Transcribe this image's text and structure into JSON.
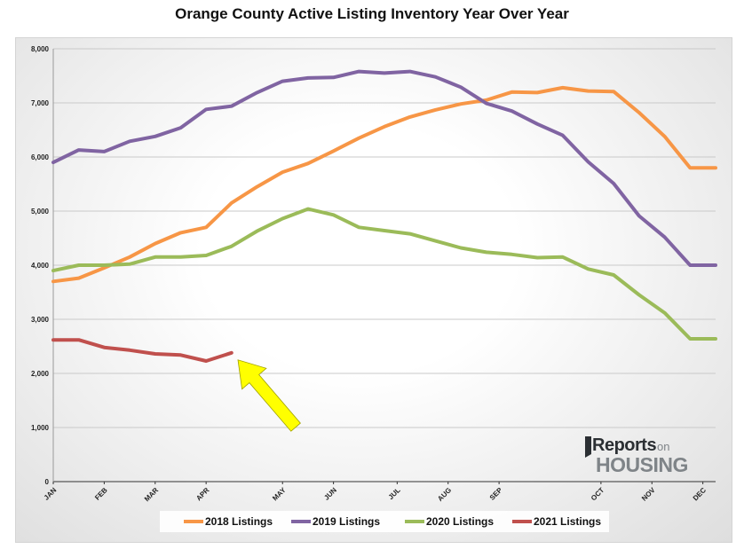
{
  "chart_data": {
    "type": "line",
    "title": "Orange County Active Listing Inventory Year Over Year",
    "xlabel": "",
    "ylabel": "",
    "ylim": [
      0,
      8000
    ],
    "yticks": [
      0,
      1000,
      2000,
      3000,
      4000,
      5000,
      6000,
      7000,
      8000
    ],
    "ytick_labels": [
      "0",
      "1,000",
      "2,000",
      "3,000",
      "4,000",
      "5,000",
      "6,000",
      "7,000",
      "8,000"
    ],
    "x_tick_labels": [
      "JAN",
      "FEB",
      "MAR",
      "APR",
      "MAY",
      "JUN",
      "JUL",
      "AUG",
      "SEP",
      "OCT",
      "NOV",
      "DEC"
    ],
    "x_tick_positions": [
      0,
      4,
      8,
      12,
      18,
      22,
      27,
      31,
      35,
      43,
      47,
      51
    ],
    "grid": true,
    "legend_position": "bottom",
    "series": [
      {
        "name": "2018 Listings",
        "color": "#f79646",
        "x": [
          0,
          2,
          4,
          6,
          8,
          10,
          12,
          14,
          16,
          18,
          20,
          22,
          24,
          26,
          28,
          30,
          32,
          34,
          36,
          38,
          40,
          42,
          44,
          46,
          48,
          50,
          52
        ],
        "values": [
          3700,
          3760,
          3950,
          4150,
          4400,
          4600,
          4700,
          5150,
          5450,
          5720,
          5880,
          6110,
          6350,
          6560,
          6740,
          6870,
          6980,
          7050,
          7200,
          7190,
          7280,
          7220,
          7210,
          6820,
          6380,
          5800,
          5800
        ]
      },
      {
        "name": "2019 Listings",
        "color": "#8064a2",
        "x": [
          0,
          2,
          4,
          6,
          8,
          10,
          12,
          14,
          16,
          18,
          20,
          22,
          24,
          26,
          28,
          30,
          32,
          34,
          36,
          38,
          40,
          42,
          44,
          46,
          48,
          50,
          52
        ],
        "values": [
          5900,
          6130,
          6100,
          6290,
          6380,
          6540,
          6880,
          6940,
          7190,
          7400,
          7460,
          7470,
          7580,
          7550,
          7580,
          7480,
          7290,
          6990,
          6850,
          6610,
          6400,
          5910,
          5510,
          4910,
          4520,
          4000,
          4000
        ]
      },
      {
        "name": "2020 Listings",
        "color": "#9bbb59",
        "x": [
          0,
          2,
          4,
          6,
          8,
          10,
          12,
          14,
          16,
          18,
          20,
          22,
          24,
          26,
          28,
          30,
          32,
          34,
          36,
          38,
          40,
          42,
          44,
          46,
          48,
          50,
          52
        ],
        "values": [
          3900,
          4000,
          4000,
          4020,
          4150,
          4150,
          4180,
          4350,
          4630,
          4860,
          5040,
          4930,
          4700,
          4640,
          4580,
          4450,
          4320,
          4240,
          4200,
          4140,
          4150,
          3930,
          3820,
          3450,
          3120,
          2640,
          2640
        ]
      },
      {
        "name": "2021 Listings",
        "color": "#c0504d",
        "x": [
          0,
          2,
          4,
          6,
          8,
          10,
          12,
          14
        ],
        "values": [
          2620,
          2620,
          2480,
          2430,
          2360,
          2340,
          2230,
          2380
        ]
      }
    ],
    "annotations": [
      {
        "type": "arrow",
        "color": "#ffff00",
        "points_to": {
          "x": 14.5,
          "y": 2250
        }
      }
    ]
  },
  "logo": {
    "line1": "Reports",
    "line1_small": "on",
    "line2": "HOUSING",
    "color_dark": "#2b2f33",
    "color_gray": "#7f8488"
  }
}
